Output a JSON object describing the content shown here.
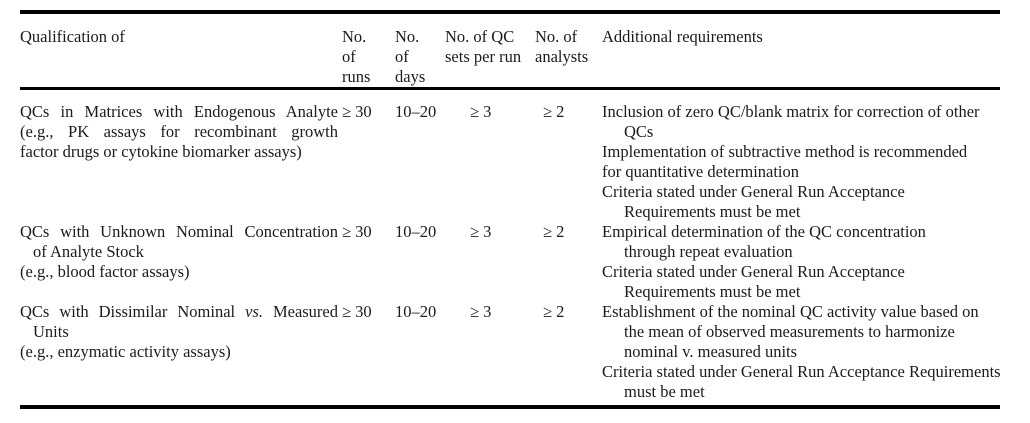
{
  "page": {
    "background_color": "#ffffff",
    "text_color": "#1b1b1b",
    "rule_color": "#000000"
  },
  "table": {
    "headers": [
      {
        "id": "qualification",
        "lines": [
          "Qualification of"
        ]
      },
      {
        "id": "no-of-runs",
        "lines": [
          "No.",
          "of",
          "runs"
        ]
      },
      {
        "id": "no-of-days",
        "lines": [
          "No.",
          "of",
          "days"
        ]
      },
      {
        "id": "no-of-qc-sets-per-run",
        "lines": [
          "No. of QC",
          "sets per run"
        ]
      },
      {
        "id": "no-of-analysts",
        "lines": [
          "No. of",
          "analysts"
        ]
      },
      {
        "id": "additional-requirements",
        "lines": [
          "Additional requirements"
        ]
      }
    ],
    "rows": [
      {
        "qualification": [
          {
            "text": "QCs in Matrices with Endogenous Analyte",
            "indent": 0,
            "justify": true
          },
          {
            "text": "(e.g., PK assays for recombinant growth",
            "indent": 0,
            "justify": true
          },
          {
            "text": "factor drugs or cytokine biomarker assays)",
            "indent": 0,
            "justify": false
          }
        ],
        "runs": "≥ 30",
        "days": "10–20",
        "qc_sets": "≥ 3",
        "analysts": "≥ 2",
        "additional": [
          {
            "text": "Inclusion of zero QC/blank matrix for correction of other",
            "indent": 0
          },
          {
            "text": "QCs",
            "indent": 1
          },
          {
            "text": "Implementation of subtractive method is recommended",
            "indent": 0
          },
          {
            "text": "for quantitative determination",
            "indent": 0
          },
          {
            "text": "Criteria stated under General Run Acceptance",
            "indent": 0
          },
          {
            "text": "Requirements must be met",
            "indent": 1
          }
        ]
      },
      {
        "qualification": [
          {
            "text": "QCs with Unknown Nominal Concentration",
            "indent": 0,
            "justify": true
          },
          {
            "text": "of Analyte Stock",
            "indent": 1,
            "justify": false
          },
          {
            "text": "(e.g., blood factor assays)",
            "indent": 0,
            "justify": false
          }
        ],
        "runs": "≥ 30",
        "days": "10–20",
        "qc_sets": "≥ 3",
        "analysts": "≥ 2",
        "additional": [
          {
            "text": "Empirical determination of the QC concentration",
            "indent": 0
          },
          {
            "text": "through repeat evaluation",
            "indent": 1
          },
          {
            "text": "Criteria stated under General Run Acceptance",
            "indent": 0
          },
          {
            "text": "Requirements must be met",
            "indent": 1
          }
        ]
      },
      {
        "qualification": [
          {
            "parts": [
              {
                "text": "QCs with Dissimilar Nominal "
              },
              {
                "text": "vs.",
                "italic": true
              },
              {
                "text": " Measured"
              }
            ],
            "indent": 0,
            "justify": true
          },
          {
            "text": "Units",
            "indent": 1,
            "justify": false
          },
          {
            "text": "(e.g., enzymatic activity assays)",
            "indent": 0,
            "justify": false
          }
        ],
        "runs": "≥ 30",
        "days": "10–20",
        "qc_sets": "≥ 3",
        "analysts": "≥ 2",
        "additional": [
          {
            "text": "Establishment of the nominal QC activity value based on",
            "indent": 0
          },
          {
            "text": "the mean of observed measurements to harmonize",
            "indent": 1
          },
          {
            "text": "nominal v. measured units",
            "indent": 1
          },
          {
            "text": "Criteria stated under General Run Acceptance Requirements",
            "indent": 0
          },
          {
            "text": "must be met",
            "indent": 1
          }
        ]
      }
    ]
  }
}
